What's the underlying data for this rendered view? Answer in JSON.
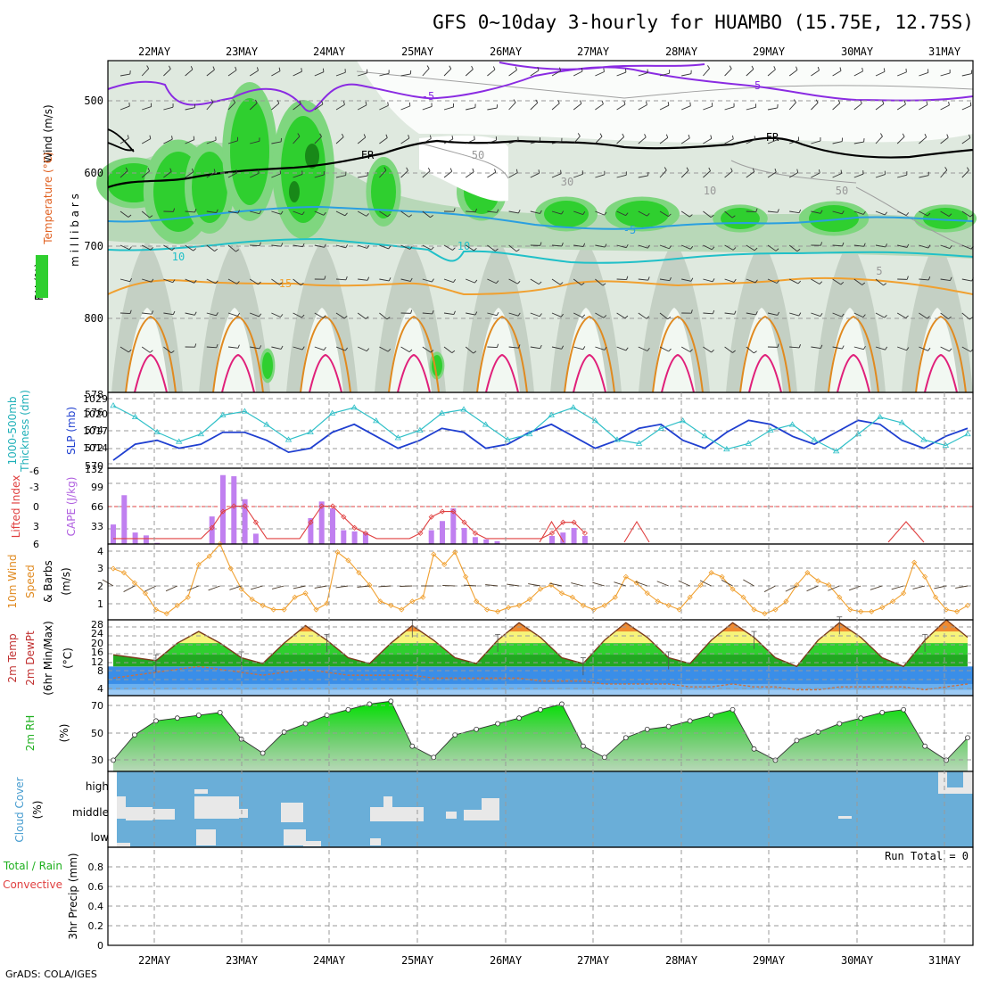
{
  "header": {
    "title": "GFS 0~10day 3-hourly for HUAMBO (15.75E, 12.75S)",
    "credit": "GrADS: COLA/IGES"
  },
  "dates": [
    "22MAY",
    "23MAY",
    "24MAY",
    "25MAY",
    "26MAY",
    "27MAY",
    "28MAY",
    "29MAY",
    "30MAY",
    "31MAY"
  ],
  "colors": {
    "rh_green": "#2fcf2f",
    "rh_light": "#e8f4e8",
    "rh_gray": "#c8d4c8",
    "temp_purple": "#8a2be2",
    "temp_blue": "#2a9fe0",
    "temp_cyan": "#20c0c8",
    "temp_orange": "#f0a030",
    "temp_pink": "#e0207a",
    "slp_blue": "#1f3fd0",
    "thick_cyan": "#30c0c8",
    "cape_purple": "#c080f0",
    "li_red": "#e04040",
    "wind_orange": "#f0a030",
    "cloud_blue": "#6aaed8",
    "rh2m_green": "#22dd22"
  },
  "panels": {
    "upper": {
      "labels": [
        "Wind (m/s)",
        "Temperature (°C)",
        "RH (%)",
        "m i l l i b a r s"
      ],
      "ytick_labels": [
        "500",
        "600",
        "700",
        "800"
      ],
      "contour_labels": [
        "-5",
        "-5",
        "FR",
        "FR",
        "10",
        "10",
        "-5",
        "15",
        "50",
        "30",
        "10",
        "50",
        "5"
      ]
    },
    "slp": {
      "labels": [
        "1000-500mb",
        "Thickness (dm)",
        "SLP (mb)"
      ],
      "left_ticks": [
        "578",
        "576",
        "574",
        "572",
        "570"
      ],
      "right_ticks": [
        "1029",
        "1020",
        "1017",
        "1014"
      ],
      "top_left": "1029"
    },
    "cape": {
      "labels": [
        "Lifted Index",
        "CAPE (J/kg)"
      ],
      "left_ticks": [
        "-3",
        "0",
        "3",
        "6",
        "-6"
      ],
      "right_ticks": [
        "99",
        "66",
        "33",
        "132"
      ]
    },
    "wind10": {
      "labels": [
        "10m Wind",
        "Speed",
        "& Barbs",
        "(m/s)"
      ],
      "ticks": [
        "4",
        "3",
        "2",
        "1"
      ]
    },
    "temp2m": {
      "labels": [
        "2m Temp",
        "2m DewPt",
        "(6hr Min/Max)",
        "(°C)"
      ],
      "ticks": [
        "28",
        "24",
        "20",
        "16",
        "12",
        "8",
        "4"
      ]
    },
    "rh2m": {
      "labels": [
        "2m RH",
        "(%)"
      ],
      "ticks": [
        "70",
        "50",
        "30"
      ]
    },
    "cloud": {
      "labels": [
        "Cloud Cover",
        "(%)"
      ],
      "levels": [
        "high",
        "middle",
        "low"
      ]
    },
    "precip": {
      "labels": [
        "Total / Rain",
        "Convective",
        "3hr Precip (mm)"
      ],
      "ticks": [
        "0.8",
        "0.6",
        "0.4",
        "0.2",
        "0"
      ],
      "run_total": "Run Total = 0"
    }
  },
  "chart_data": [
    {
      "type": "line",
      "name": "slp_and_thickness",
      "x": [
        "21MAY12",
        "21MAY18",
        "22MAY00",
        "22MAY06",
        "22MAY12",
        "22MAY18",
        "23MAY00",
        "23MAY06",
        "23MAY12",
        "23MAY18",
        "24MAY00",
        "24MAY06",
        "24MAY12",
        "24MAY18",
        "25MAY00",
        "25MAY06",
        "25MAY12",
        "25MAY18",
        "26MAY00",
        "26MAY06",
        "26MAY12",
        "26MAY18",
        "27MAY00",
        "27MAY06",
        "27MAY12",
        "27MAY18",
        "28MAY00",
        "28MAY06",
        "28MAY12",
        "28MAY18",
        "29MAY00",
        "29MAY06",
        "29MAY12",
        "29MAY18",
        "30MAY00",
        "30MAY06",
        "30MAY12",
        "30MAY18",
        "31MAY00",
        "31MAY06"
      ],
      "series": [
        {
          "name": "SLP (mb)",
          "values": [
            1013,
            1017,
            1018,
            1016,
            1017,
            1020,
            1020,
            1018,
            1015,
            1016,
            1020,
            1022,
            1019,
            1016,
            1018,
            1021,
            1020,
            1016,
            1017,
            1020,
            1022,
            1019,
            1016,
            1018,
            1021,
            1022,
            1018,
            1016,
            1020,
            1023,
            1022,
            1019,
            1017,
            1020,
            1023,
            1022,
            1018,
            1016,
            1019,
            1021
          ]
        },
        {
          "name": "1000-500mb Thickness (dm)",
          "values": [
            576.6,
            575.4,
            573.8,
            572.8,
            573.6,
            575.6,
            576.0,
            574.6,
            573.0,
            573.8,
            575.8,
            576.4,
            575.0,
            573.2,
            574.0,
            575.8,
            576.2,
            574.6,
            573.0,
            573.6,
            575.6,
            576.4,
            575.0,
            573.0,
            572.6,
            574.2,
            575.0,
            573.4,
            572.0,
            572.6,
            574.0,
            574.6,
            573.0,
            571.8,
            573.6,
            575.4,
            574.8,
            573.0,
            572.4,
            573.6
          ]
        }
      ],
      "ylim_left": [
        570,
        578
      ]
    },
    {
      "type": "bar",
      "name": "cape_and_lifted_index",
      "categories": [
        "21MAY12",
        "21MAY15",
        "21MAY18",
        "21MAY21",
        "22MAY00",
        "22MAY03",
        "22MAY06",
        "22MAY09",
        "22MAY12",
        "22MAY15",
        "22MAY18",
        "22MAY21",
        "23MAY00",
        "23MAY03",
        "23MAY06",
        "23MAY09",
        "23MAY12",
        "23MAY15",
        "23MAY18",
        "23MAY21",
        "24MAY00",
        "24MAY03",
        "24MAY06",
        "24MAY09",
        "24MAY12",
        "24MAY15",
        "24MAY18",
        "24MAY21",
        "25MAY00",
        "25MAY03",
        "25MAY06",
        "25MAY09",
        "25MAY12",
        "25MAY15",
        "25MAY18",
        "25MAY21",
        "26MAY00",
        "26MAY03",
        "26MAY06",
        "26MAY09",
        "26MAY12",
        "26MAY15",
        "26MAY18",
        "26MAY21"
      ],
      "series": [
        {
          "name": "CAPE (J/kg)",
          "values": [
            34,
            85,
            20,
            15,
            2,
            0,
            0,
            0,
            0,
            48,
            120,
            118,
            78,
            18,
            0,
            0,
            0,
            0,
            45,
            74,
            62,
            24,
            22,
            20,
            0,
            0,
            0,
            0,
            0,
            24,
            40,
            62,
            28,
            12,
            8,
            5,
            0,
            0,
            0,
            0,
            14,
            20,
            28,
            14
          ]
        },
        {
          "name": "Lifted Index",
          "values": [
            6,
            6,
            6,
            6,
            6,
            6,
            6,
            6,
            6,
            4,
            1,
            0,
            0,
            3,
            6,
            6,
            6,
            6,
            3,
            0,
            0,
            2,
            4,
            5,
            6,
            6,
            6,
            6,
            5,
            2,
            1,
            1,
            3,
            5,
            6,
            6,
            6,
            6,
            6,
            6,
            5,
            3,
            3,
            5
          ]
        }
      ],
      "ylim": [
        0,
        132
      ]
    },
    {
      "type": "line",
      "name": "wind10m",
      "x_count": 81,
      "series": [
        {
          "name": "10m Wind Speed (m/s)",
          "values": [
            3,
            2.8,
            2.3,
            1.8,
            1,
            0.8,
            1.2,
            1.6,
            3.2,
            3.6,
            4.2,
            3,
            2,
            1.5,
            1.2,
            1,
            1,
            1.6,
            1.8,
            1,
            1.3,
            3.8,
            3.4,
            2.8,
            2.2,
            1.4,
            1.2,
            1,
            1.4,
            1.6,
            3.7,
            3.2,
            3.8,
            2.6,
            1.4,
            1,
            0.9,
            1.1,
            1.2,
            1.5,
            2,
            2.2,
            1.8,
            1.6,
            1.2,
            1,
            1.2,
            1.6,
            2.6,
            2.3,
            1.8,
            1.4,
            1.2,
            1,
            1.6,
            2.2,
            2.8,
            2.6,
            2,
            1.6,
            1,
            0.8,
            1,
            1.4,
            2.2,
            2.8,
            2.4,
            2.2,
            1.6,
            1,
            0.9,
            0.9,
            1.1,
            1.4,
            1.8,
            3.3,
            2.6,
            1.6,
            1,
            0.9,
            1.2
          ]
        }
      ],
      "ylim": [
        0.5,
        4
      ]
    },
    {
      "type": "area",
      "name": "temp2m",
      "x_count": 41,
      "series": [
        {
          "name": "2m Temp (°C)",
          "values": [
            16,
            15,
            14,
            20,
            24,
            20,
            15,
            13,
            20,
            26,
            21,
            15,
            13,
            20,
            26,
            21,
            15,
            13,
            21,
            27,
            22,
            15,
            13,
            21,
            27,
            22,
            15,
            13,
            21,
            27,
            22,
            15,
            12,
            21,
            27,
            22,
            15,
            12,
            21,
            28,
            22
          ]
        },
        {
          "name": "2m DewPt (°C)",
          "values": [
            8,
            9,
            10,
            11,
            12,
            11,
            10,
            9,
            10,
            11,
            10,
            9,
            9,
            9,
            9,
            8,
            8,
            8,
            8,
            8,
            7,
            7,
            7,
            6,
            6,
            6,
            6,
            5,
            5,
            6,
            5,
            5,
            4,
            4,
            5,
            5,
            5,
            5,
            4,
            5,
            6
          ]
        }
      ],
      "ylim": [
        4,
        28
      ]
    },
    {
      "type": "area",
      "name": "rh2m",
      "x_count": 41,
      "series": [
        {
          "name": "2m RH (%)",
          "values": [
            30,
            48,
            58,
            60,
            62,
            64,
            45,
            35,
            50,
            56,
            62,
            66,
            70,
            72,
            40,
            32,
            48,
            52,
            56,
            60,
            66,
            70,
            40,
            32,
            46,
            52,
            54,
            58,
            62,
            66,
            38,
            30,
            44,
            50,
            56,
            60,
            64,
            66,
            40,
            30,
            46
          ]
        }
      ],
      "ylim": [
        25,
        75
      ]
    },
    {
      "type": "area",
      "name": "cloud_cover",
      "series": [
        {
          "name": "high",
          "values": []
        },
        {
          "name": "middle",
          "values": []
        },
        {
          "name": "low",
          "values": []
        }
      ]
    },
    {
      "type": "bar",
      "name": "precip3hr",
      "series": [
        {
          "name": "Total / Rain",
          "values": []
        },
        {
          "name": "Convective",
          "values": []
        }
      ],
      "ylim": [
        0,
        0.9
      ]
    }
  ]
}
